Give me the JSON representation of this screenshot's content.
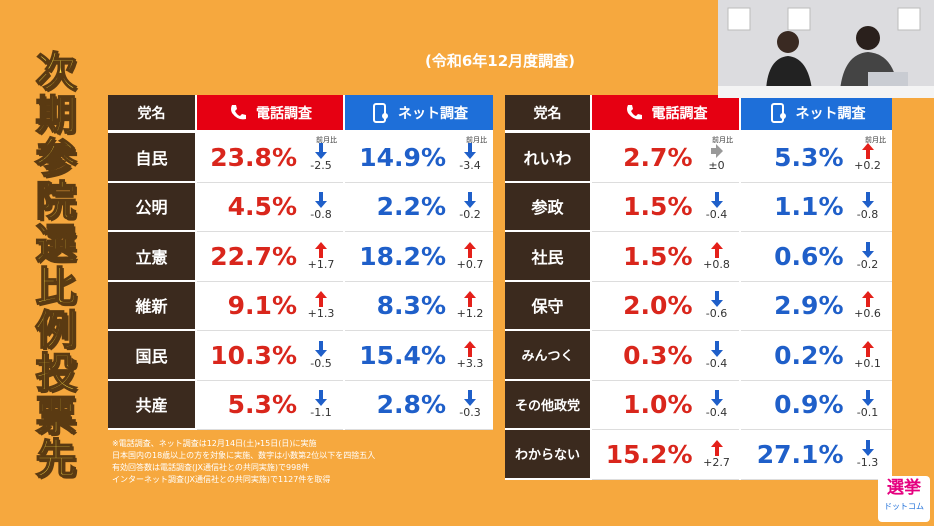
{
  "title": "次期参院選比例投票先",
  "subtitle": "(令和6年12月度調査)",
  "tables": [
    {
      "headers": [
        "党名",
        "電話調査",
        "ネット調査"
      ],
      "change_label": "前月比",
      "rows": [
        {
          "party": "自民",
          "phone": "23.8%",
          "phone_change": "-2.5",
          "net": "14.9%",
          "net_change": "-3.4"
        },
        {
          "party": "公明",
          "phone": "4.5%",
          "phone_change": "-0.8",
          "net": "2.2%",
          "net_change": "-0.2"
        },
        {
          "party": "立憲",
          "phone": "22.7%",
          "phone_change": "+1.7",
          "net": "18.2%",
          "net_change": "+0.7"
        },
        {
          "party": "維新",
          "phone": "9.1%",
          "phone_change": "+1.3",
          "net": "8.3%",
          "net_change": "+1.2"
        },
        {
          "party": "国民",
          "phone": "10.3%",
          "phone_change": "-0.5",
          "net": "15.4%",
          "net_change": "+3.3"
        },
        {
          "party": "共産",
          "phone": "5.3%",
          "phone_change": "-1.1",
          "net": "2.8%",
          "net_change": "-0.3"
        }
      ]
    },
    {
      "headers": [
        "党名",
        "電話調査",
        "ネット調査"
      ],
      "change_label": "前月比",
      "rows": [
        {
          "party": "れいわ",
          "phone": "2.7%",
          "phone_change": "±0",
          "net": "5.3%",
          "net_change": "+0.2"
        },
        {
          "party": "参政",
          "phone": "1.5%",
          "phone_change": "-0.4",
          "net": "1.1%",
          "net_change": "-0.8"
        },
        {
          "party": "社民",
          "phone": "1.5%",
          "phone_change": "+0.8",
          "net": "0.6%",
          "net_change": "-0.2"
        },
        {
          "party": "保守",
          "phone": "2.0%",
          "phone_change": "-0.6",
          "net": "2.9%",
          "net_change": "+0.6"
        },
        {
          "party": "みんつく",
          "phone": "0.3%",
          "phone_change": "-0.4",
          "net": "0.2%",
          "net_change": "+0.1"
        },
        {
          "party": "その他政党",
          "phone": "1.0%",
          "phone_change": "-0.4",
          "net": "0.9%",
          "net_change": "-0.1"
        },
        {
          "party": "わからない",
          "phone": "15.2%",
          "phone_change": "+2.7",
          "net": "27.1%",
          "net_change": "-1.3"
        }
      ]
    }
  ],
  "notes": [
    "※電話調査、ネット調査は12月14日(土)・15日(日)に実施",
    "日本国内の18歳以上の方を対象に実施、数字は小数第2位以下を四捨五入",
    "有効回答数は電話調査(JX通信社との共同実施)で998件",
    "インターネット調査(JX通信社との共同実施)で1127件を取得"
  ],
  "logo": {
    "top": "選挙",
    "bottom": "ドットコム"
  }
}
